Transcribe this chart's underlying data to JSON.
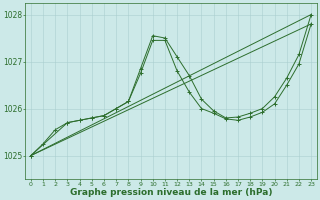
{
  "background_color": "#cce9e8",
  "grid_color": "#aacfcf",
  "line_color": "#2d6e2d",
  "xlabel": "Graphe pression niveau de la mer (hPa)",
  "xlabel_fontsize": 6.5,
  "xlim": [
    -0.5,
    23.5
  ],
  "ylim": [
    1024.5,
    1028.25
  ],
  "yticks": [
    1025,
    1026,
    1027,
    1028
  ],
  "ytick_labels": [
    "1025",
    "1026",
    "1027",
    "1028"
  ],
  "xticks": [
    0,
    1,
    2,
    3,
    4,
    5,
    6,
    7,
    8,
    9,
    10,
    11,
    12,
    13,
    14,
    15,
    16,
    17,
    18,
    19,
    20,
    21,
    22,
    23
  ],
  "series": [
    {
      "x": [
        0,
        1,
        2,
        3,
        4,
        5,
        6,
        7,
        8,
        9,
        10,
        11,
        12,
        13,
        14,
        15,
        16,
        17,
        18,
        19,
        20,
        21,
        22,
        23
      ],
      "y": [
        1025.0,
        1025.25,
        1025.55,
        1025.7,
        1025.75,
        1025.8,
        1025.85,
        1026.0,
        1026.15,
        1026.85,
        1027.55,
        1027.5,
        1027.1,
        1026.7,
        1026.2,
        1025.95,
        1025.8,
        1025.82,
        1025.9,
        1026.0,
        1026.25,
        1026.65,
        1027.15,
        1028.0
      ],
      "markers": true
    },
    {
      "x": [
        0,
        3,
        4,
        5,
        6,
        7,
        8,
        9,
        10,
        11,
        12,
        13,
        14,
        15,
        16,
        17,
        18,
        19,
        20,
        21,
        22,
        23
      ],
      "y": [
        1025.0,
        1025.7,
        1025.75,
        1025.8,
        1025.85,
        1026.0,
        1026.15,
        1026.75,
        1027.45,
        1027.45,
        1026.8,
        1026.35,
        1026.0,
        1025.9,
        1025.78,
        1025.75,
        1025.82,
        1025.92,
        1026.1,
        1026.5,
        1026.95,
        1027.8
      ],
      "markers": true
    },
    {
      "x": [
        0,
        23
      ],
      "y": [
        1025.0,
        1028.0
      ],
      "markers": false
    },
    {
      "x": [
        0,
        23
      ],
      "y": [
        1025.0,
        1027.8
      ],
      "markers": false
    }
  ]
}
